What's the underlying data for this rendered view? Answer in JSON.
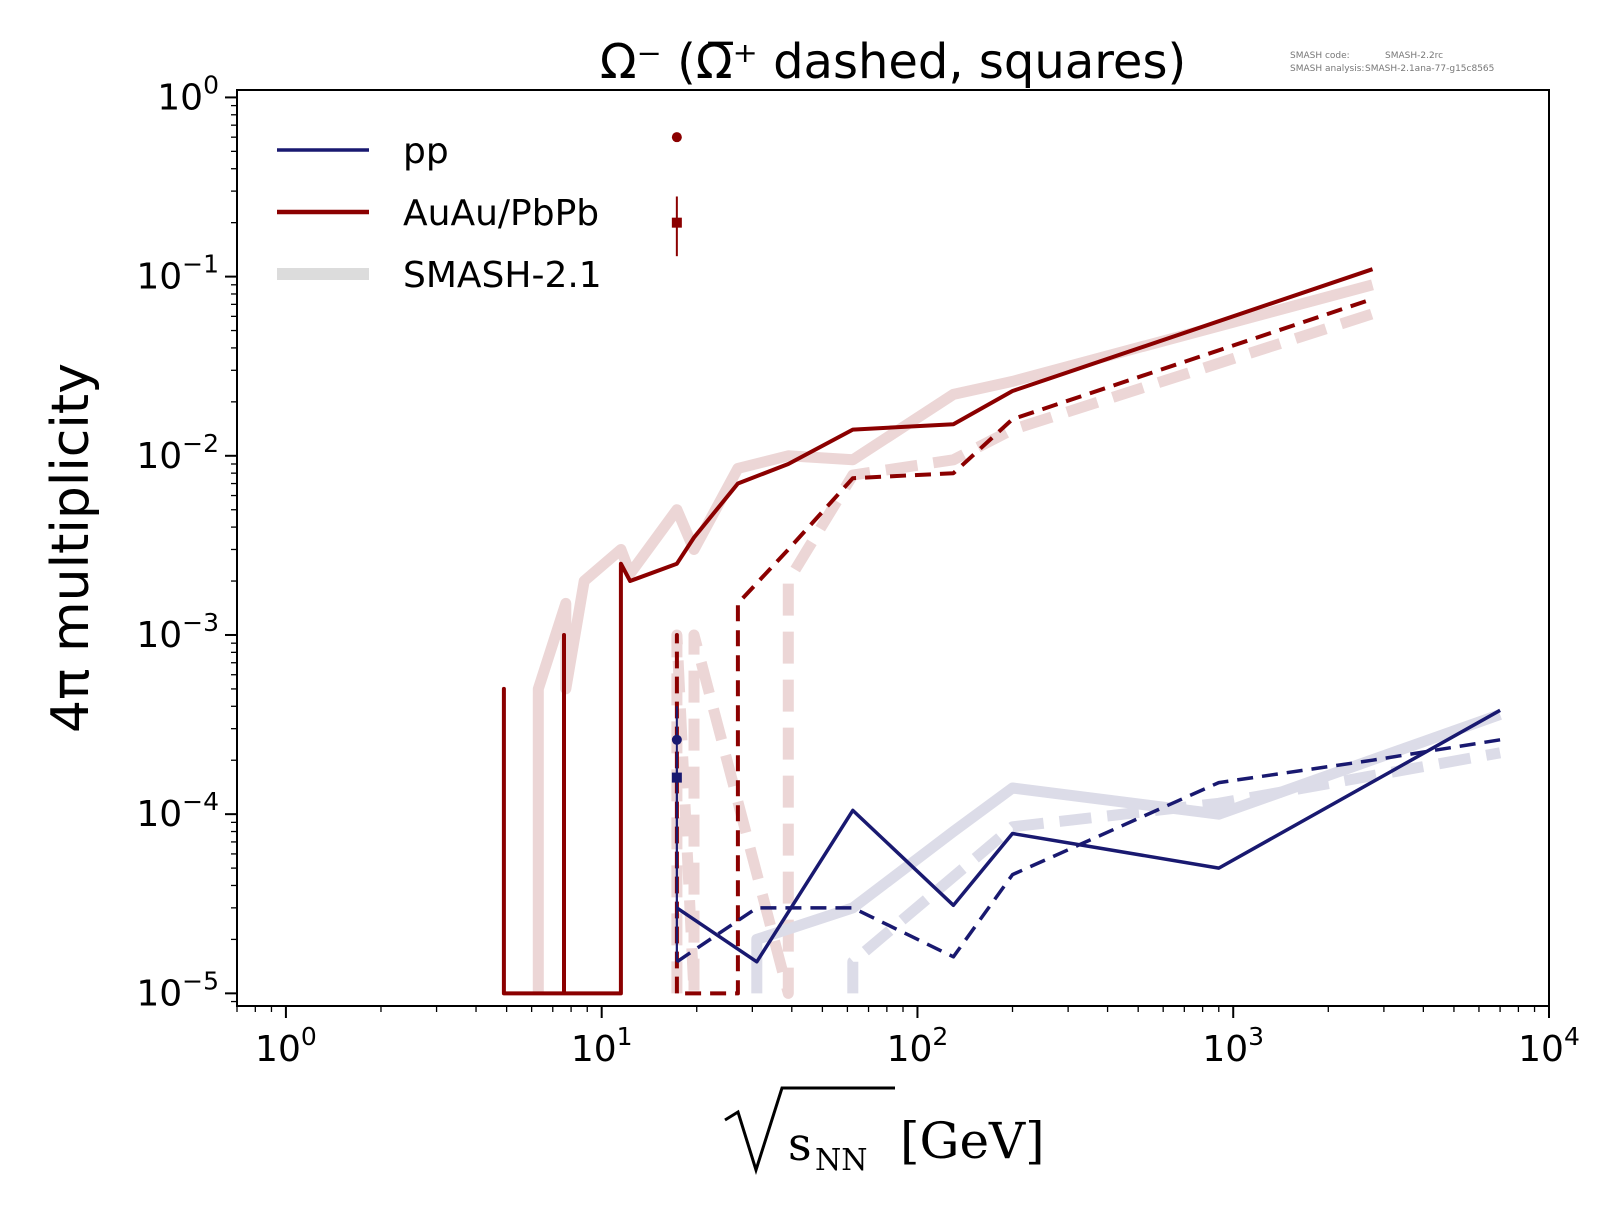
{
  "chart_data": {
    "type": "line",
    "title": "Ω⁻ (Ω̅⁺ dashed, squares)",
    "xlabel": "[GeV]",
    "xlabel_radicand": "s",
    "xlabel_radicand_sub": "NN",
    "ylabel": "4π multiplicity",
    "x_scale": "log",
    "y_scale": "log",
    "xlim": [
      0.7,
      10000
    ],
    "ylim": [
      8.5e-06,
      1.1
    ],
    "x_ticks": [
      {
        "value": 1,
        "base": "10",
        "exp": "0"
      },
      {
        "value": 10,
        "base": "10",
        "exp": "1"
      },
      {
        "value": 100,
        "base": "10",
        "exp": "2"
      },
      {
        "value": 1000,
        "base": "10",
        "exp": "3"
      },
      {
        "value": 10000,
        "base": "10",
        "exp": "4"
      }
    ],
    "y_ticks": [
      {
        "value": 1,
        "base": "10",
        "exp": "0"
      },
      {
        "value": 0.1,
        "base": "10",
        "exp": "−1"
      },
      {
        "value": 0.01,
        "base": "10",
        "exp": "−2"
      },
      {
        "value": 0.001,
        "base": "10",
        "exp": "−3"
      },
      {
        "value": 0.0001,
        "base": "10",
        "exp": "−4"
      },
      {
        "value": 1e-05,
        "base": "10",
        "exp": "−5"
      }
    ],
    "grid": false,
    "legend_placement": "top-left",
    "legend": [
      {
        "label": "pp",
        "color": "#191970",
        "style": "solid",
        "marker": "circle"
      },
      {
        "label": "AuAu/PbPb",
        "color": "#8b0000",
        "style": "solid",
        "marker": "square"
      },
      {
        "label": "SMASH-2.1",
        "color": "#d9d9d9",
        "style": "thick",
        "marker": "none"
      }
    ],
    "annotation": {
      "line1_label": "SMASH code:",
      "line1_value": "SMASH-2.2rc",
      "line2_label": "SMASH analysis:",
      "line2_value": "SMASH-2.1ana-77-g15c8565"
    },
    "colors": {
      "pp": "#191970",
      "aa": "#8b0000",
      "smash_pp": "#dcdce8",
      "smash_aa": "#ecd6d6"
    },
    "series": [
      {
        "id": "smash_aa_solid",
        "role": "smash",
        "group": "aa",
        "dash": "solid",
        "points": [
          [
            6.3,
            1e-05
          ],
          [
            6.3,
            0.0005
          ],
          [
            7.7,
            0.0015
          ],
          [
            7.7,
            0.0005
          ],
          [
            8.8,
            0.002
          ],
          [
            11.5,
            0.003
          ],
          [
            12.3,
            0.0022
          ],
          [
            17.3,
            0.005
          ],
          [
            19.6,
            0.003
          ],
          [
            27,
            0.0085
          ],
          [
            39,
            0.01
          ],
          [
            62.4,
            0.0095
          ],
          [
            130,
            0.022
          ],
          [
            200,
            0.026
          ],
          [
            2760,
            0.09
          ]
        ]
      },
      {
        "id": "smash_aa_dashed",
        "role": "smash",
        "group": "aa",
        "dash": "dashed",
        "points": [
          [
            17.3,
            1e-05
          ],
          [
            17.3,
            0.001
          ],
          [
            19.6,
            1e-05
          ],
          [
            19.6,
            0.001
          ],
          [
            39,
            1e-05
          ],
          [
            39,
            0.002
          ],
          [
            62.4,
            0.0078
          ],
          [
            130,
            0.0095
          ],
          [
            200,
            0.014
          ],
          [
            2760,
            0.062
          ]
        ]
      },
      {
        "id": "smash_pp_solid",
        "role": "smash",
        "group": "pp",
        "dash": "solid",
        "points": [
          [
            31,
            1e-05
          ],
          [
            31,
            2e-05
          ],
          [
            62.4,
            3e-05
          ],
          [
            130,
            8e-05
          ],
          [
            200,
            0.00014
          ],
          [
            900,
            0.0001
          ],
          [
            7000,
            0.00036
          ]
        ]
      },
      {
        "id": "smash_pp_dashed",
        "role": "smash",
        "group": "pp",
        "dash": "dashed",
        "points": [
          [
            62.4,
            1e-05
          ],
          [
            62.4,
            1.5e-05
          ],
          [
            200,
            8.5e-05
          ],
          [
            900,
            0.000115
          ],
          [
            7000,
            0.00022
          ]
        ]
      },
      {
        "id": "aa_omega_minus",
        "role": "data",
        "group": "aa",
        "dash": "solid",
        "points": [
          [
            4.9,
            1e-05
          ],
          [
            4.9,
            0.0005
          ],
          [
            4.9,
            1e-05
          ],
          [
            7.6,
            1e-05
          ],
          [
            7.6,
            0.001
          ],
          [
            7.6,
            1e-05
          ],
          [
            11.5,
            1e-05
          ],
          [
            11.5,
            0.0025
          ],
          [
            12.3,
            0.002
          ],
          [
            17.3,
            0.0025
          ],
          [
            19.6,
            0.0035
          ],
          [
            27,
            0.007
          ],
          [
            39,
            0.009
          ],
          [
            62.4,
            0.014
          ],
          [
            130,
            0.015
          ],
          [
            200,
            0.023
          ],
          [
            2760,
            0.11
          ]
        ]
      },
      {
        "id": "aa_omega_plus",
        "role": "data",
        "group": "aa",
        "dash": "dashed",
        "points": [
          [
            17.3,
            1e-05
          ],
          [
            17.3,
            0.001
          ],
          [
            17.3,
            1e-05
          ],
          [
            27,
            1e-05
          ],
          [
            27,
            0.0015
          ],
          [
            39,
            0.003
          ],
          [
            62.4,
            0.0075
          ],
          [
            130,
            0.008
          ],
          [
            200,
            0.016
          ],
          [
            2760,
            0.075
          ]
        ]
      },
      {
        "id": "pp_omega_minus",
        "role": "data",
        "group": "pp",
        "dash": "solid",
        "points": [
          [
            17.3,
            3e-05
          ],
          [
            31,
            1.5e-05
          ],
          [
            62.4,
            0.000105
          ],
          [
            130,
            3.1e-05
          ],
          [
            200,
            7.8e-05
          ],
          [
            900,
            5e-05
          ],
          [
            7000,
            0.00038
          ]
        ]
      },
      {
        "id": "pp_omega_plus",
        "role": "data",
        "group": "pp",
        "dash": "dashed",
        "points": [
          [
            17.3,
            1.5e-05
          ],
          [
            31,
            3e-05
          ],
          [
            62.4,
            3e-05
          ],
          [
            130,
            1.6e-05
          ],
          [
            200,
            4.6e-05
          ],
          [
            900,
            0.00015
          ],
          [
            2760,
            0.0002
          ],
          [
            7000,
            0.00026
          ]
        ]
      }
    ],
    "markers": [
      {
        "id": "aa-marker-circle",
        "group": "aa",
        "shape": "circle",
        "x": 17.3,
        "y": 0.6
      },
      {
        "id": "aa-marker-square",
        "group": "aa",
        "shape": "square",
        "x": 17.3,
        "y": 0.2,
        "yerr_lo": 0.13,
        "yerr_hi": 0.28
      },
      {
        "id": "pp-marker-circle",
        "group": "pp",
        "shape": "circle",
        "x": 17.3,
        "y": 0.00026,
        "yerr_lo": 1.5e-05,
        "yerr_hi": 0.0004
      },
      {
        "id": "pp-marker-square",
        "group": "pp",
        "shape": "square",
        "x": 17.3,
        "y": 0.00016,
        "yerr_lo": 1.5e-05,
        "yerr_hi": 0.00022
      }
    ]
  }
}
